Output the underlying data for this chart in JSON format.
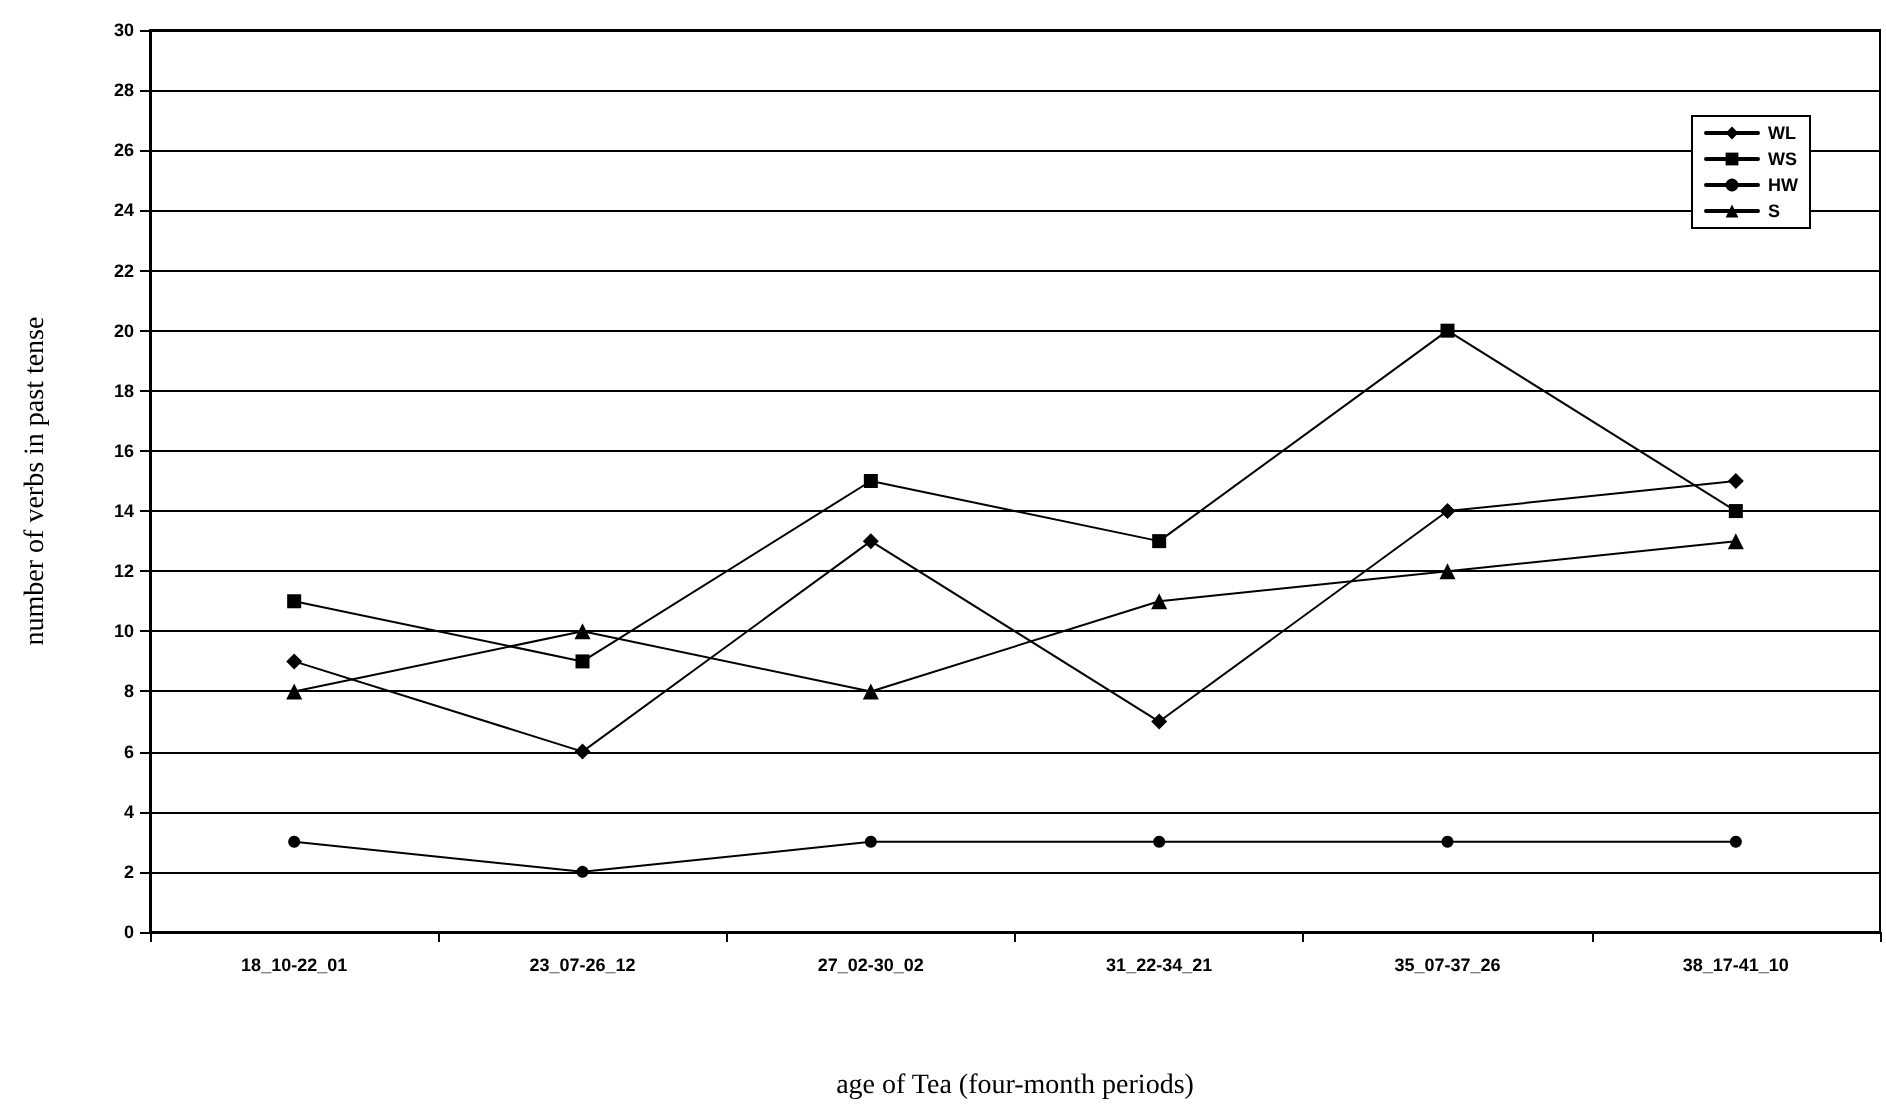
{
  "chart_data": {
    "type": "line",
    "xlabel": "age of Tea (four-month periods)",
    "ylabel": "number of verbs in past tense",
    "categories": [
      "18_10-22_01",
      "23_07-26_12",
      "27_02-30_02",
      "31_22-34_21",
      "35_07-37_26",
      "38_17-41_10"
    ],
    "series": [
      {
        "name": "WL",
        "color": "#000000",
        "marker": "diamond",
        "values": [
          9,
          6,
          13,
          7,
          14,
          15
        ]
      },
      {
        "name": "WS",
        "color": "#000000",
        "marker": "square",
        "values": [
          11,
          9,
          15,
          13,
          20,
          14
        ]
      },
      {
        "name": "HW",
        "color": "#000000",
        "marker": "circle",
        "values": [
          3,
          2,
          3,
          3,
          3,
          3
        ]
      },
      {
        "name": "S",
        "color": "#000000",
        "marker": "triangle",
        "values": [
          8,
          10,
          8,
          11,
          12,
          13
        ]
      }
    ],
    "ylim": [
      0,
      30
    ],
    "yticks": [
      0,
      2,
      4,
      6,
      8,
      10,
      12,
      14,
      16,
      18,
      20,
      22,
      24,
      26,
      28,
      30
    ],
    "grid": "y",
    "legend": "top right",
    "line_style": "solid"
  }
}
